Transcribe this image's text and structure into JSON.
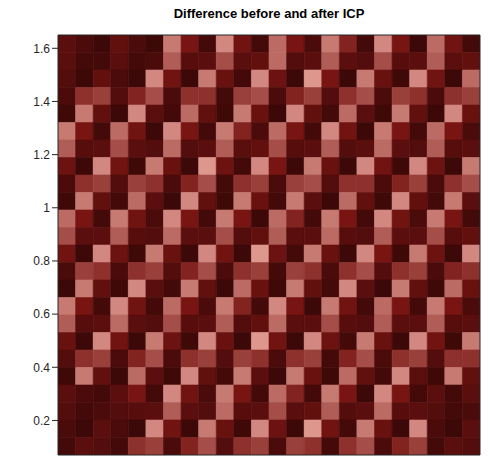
{
  "chart_data": {
    "type": "heatmap",
    "title": "Difference before and after ICP",
    "xlim": [
      0.05,
      1.57
    ],
    "ylim": [
      0.07,
      1.65
    ],
    "yticks": [
      0.2,
      0.4,
      0.6,
      0.8,
      1,
      1.2,
      1.4,
      1.6
    ],
    "tick_labels": "y",
    "value_range": [
      0,
      1
    ],
    "cells": [
      [
        0.3,
        0.2,
        0.1,
        0.35,
        0.2,
        0.1,
        0.85,
        0.5,
        0.15,
        0.9,
        0.45,
        0.15,
        0.8,
        0.5,
        0.2,
        0.85,
        0.55,
        0.15,
        0.9,
        0.5,
        0.1,
        0.8,
        0.45,
        0.15
      ],
      [
        0.3,
        0.15,
        0.15,
        0.3,
        0.15,
        0.2,
        0.75,
        0.28,
        0.3,
        0.7,
        0.3,
        0.35,
        0.8,
        0.25,
        0.3,
        0.75,
        0.3,
        0.25,
        0.7,
        0.28,
        0.3,
        0.75,
        0.3,
        0.35
      ],
      [
        0.25,
        0.1,
        0.35,
        0.2,
        0.1,
        0.9,
        0.45,
        0.1,
        0.85,
        0.4,
        0.15,
        0.9,
        0.42,
        0.1,
        0.95,
        0.5,
        0.1,
        0.85,
        0.4,
        0.12,
        0.9,
        0.45,
        0.1,
        0.8
      ],
      [
        0.2,
        0.6,
        0.65,
        0.25,
        0.55,
        0.7,
        0.2,
        0.6,
        0.6,
        0.15,
        0.65,
        0.7,
        0.2,
        0.55,
        0.65,
        0.25,
        0.6,
        0.7,
        0.2,
        0.65,
        0.6,
        0.2,
        0.6,
        0.65
      ],
      [
        0.12,
        0.85,
        0.35,
        0.1,
        0.9,
        0.3,
        0.15,
        0.8,
        0.35,
        0.12,
        0.85,
        0.4,
        0.1,
        0.9,
        0.35,
        0.15,
        0.8,
        0.3,
        0.12,
        0.85,
        0.35,
        0.1,
        0.9,
        0.4
      ],
      [
        0.85,
        0.5,
        0.15,
        0.8,
        0.45,
        0.1,
        0.9,
        0.5,
        0.15,
        0.85,
        0.55,
        0.2,
        0.8,
        0.5,
        0.15,
        0.9,
        0.45,
        0.1,
        0.85,
        0.5,
        0.15,
        0.8,
        0.5,
        0.2
      ],
      [
        0.75,
        0.28,
        0.3,
        0.7,
        0.3,
        0.25,
        0.8,
        0.25,
        0.3,
        0.75,
        0.3,
        0.35,
        0.7,
        0.28,
        0.3,
        0.75,
        0.25,
        0.3,
        0.8,
        0.3,
        0.25,
        0.75,
        0.28,
        0.3
      ],
      [
        0.42,
        0.1,
        0.9,
        0.45,
        0.12,
        0.85,
        0.4,
        0.1,
        0.95,
        0.42,
        0.15,
        0.9,
        0.5,
        0.1,
        0.85,
        0.4,
        0.1,
        0.9,
        0.45,
        0.12,
        0.9,
        0.42,
        0.1,
        0.85
      ],
      [
        0.2,
        0.6,
        0.65,
        0.25,
        0.65,
        0.6,
        0.2,
        0.55,
        0.7,
        0.15,
        0.6,
        0.65,
        0.2,
        0.65,
        0.7,
        0.25,
        0.6,
        0.6,
        0.2,
        0.55,
        0.65,
        0.2,
        0.6,
        0.7
      ],
      [
        0.12,
        0.85,
        0.35,
        0.15,
        0.8,
        0.3,
        0.1,
        0.9,
        0.35,
        0.12,
        0.85,
        0.4,
        0.15,
        0.85,
        0.3,
        0.1,
        0.8,
        0.35,
        0.12,
        0.9,
        0.35,
        0.15,
        0.85,
        0.3
      ],
      [
        0.8,
        0.5,
        0.15,
        0.85,
        0.45,
        0.2,
        0.9,
        0.5,
        0.15,
        0.85,
        0.5,
        0.1,
        0.8,
        0.55,
        0.15,
        0.85,
        0.5,
        0.15,
        0.9,
        0.45,
        0.2,
        0.85,
        0.5,
        0.15
      ],
      [
        0.7,
        0.3,
        0.3,
        0.75,
        0.28,
        0.25,
        0.8,
        0.3,
        0.3,
        0.7,
        0.25,
        0.35,
        0.75,
        0.3,
        0.3,
        0.8,
        0.28,
        0.25,
        0.75,
        0.3,
        0.3,
        0.7,
        0.28,
        0.35
      ],
      [
        0.45,
        0.1,
        0.9,
        0.42,
        0.12,
        0.85,
        0.4,
        0.1,
        0.9,
        0.45,
        0.1,
        0.95,
        0.42,
        0.15,
        0.85,
        0.4,
        0.1,
        0.9,
        0.5,
        0.12,
        0.85,
        0.42,
        0.1,
        0.9
      ],
      [
        0.2,
        0.65,
        0.6,
        0.2,
        0.6,
        0.65,
        0.25,
        0.55,
        0.7,
        0.2,
        0.6,
        0.65,
        0.15,
        0.65,
        0.6,
        0.2,
        0.6,
        0.7,
        0.25,
        0.6,
        0.65,
        0.2,
        0.55,
        0.6
      ],
      [
        0.1,
        0.85,
        0.35,
        0.12,
        0.9,
        0.3,
        0.15,
        0.85,
        0.35,
        0.1,
        0.8,
        0.4,
        0.12,
        0.85,
        0.35,
        0.15,
        0.9,
        0.3,
        0.1,
        0.85,
        0.35,
        0.12,
        0.8,
        0.4
      ],
      [
        0.85,
        0.5,
        0.15,
        0.9,
        0.45,
        0.15,
        0.8,
        0.5,
        0.2,
        0.85,
        0.55,
        0.15,
        0.9,
        0.5,
        0.1,
        0.85,
        0.45,
        0.15,
        0.8,
        0.5,
        0.15,
        0.85,
        0.5,
        0.2
      ],
      [
        0.75,
        0.28,
        0.3,
        0.8,
        0.3,
        0.25,
        0.7,
        0.28,
        0.3,
        0.75,
        0.25,
        0.35,
        0.8,
        0.3,
        0.3,
        0.7,
        0.28,
        0.25,
        0.75,
        0.3,
        0.3,
        0.75,
        0.28,
        0.3
      ],
      [
        0.4,
        0.1,
        0.9,
        0.45,
        0.1,
        0.85,
        0.42,
        0.12,
        0.9,
        0.4,
        0.1,
        0.95,
        0.45,
        0.1,
        0.9,
        0.42,
        0.15,
        0.85,
        0.4,
        0.1,
        0.9,
        0.45,
        0.12,
        0.85
      ],
      [
        0.25,
        0.6,
        0.65,
        0.2,
        0.55,
        0.7,
        0.2,
        0.6,
        0.65,
        0.25,
        0.65,
        0.6,
        0.2,
        0.6,
        0.65,
        0.15,
        0.55,
        0.7,
        0.2,
        0.6,
        0.65,
        0.25,
        0.6,
        0.6
      ],
      [
        0.12,
        0.85,
        0.35,
        0.1,
        0.8,
        0.3,
        0.12,
        0.9,
        0.35,
        0.15,
        0.85,
        0.3,
        0.1,
        0.85,
        0.4,
        0.12,
        0.8,
        0.35,
        0.15,
        0.9,
        0.3,
        0.12,
        0.85,
        0.35
      ],
      [
        0.3,
        0.2,
        0.15,
        0.3,
        0.5,
        0.15,
        0.9,
        0.45,
        0.2,
        0.85,
        0.5,
        0.15,
        0.8,
        0.55,
        0.15,
        0.85,
        0.5,
        0.1,
        0.9,
        0.5,
        0.15,
        0.3,
        0.15,
        0.3
      ],
      [
        0.25,
        0.15,
        0.2,
        0.25,
        0.28,
        0.3,
        0.75,
        0.3,
        0.25,
        0.8,
        0.28,
        0.3,
        0.7,
        0.3,
        0.35,
        0.75,
        0.25,
        0.3,
        0.8,
        0.28,
        0.3,
        0.25,
        0.15,
        0.2
      ],
      [
        0.2,
        0.1,
        0.3,
        0.2,
        0.1,
        0.9,
        0.45,
        0.1,
        0.85,
        0.4,
        0.12,
        0.9,
        0.42,
        0.1,
        0.95,
        0.45,
        0.15,
        0.85,
        0.4,
        0.1,
        0.9,
        0.2,
        0.1,
        0.3
      ],
      [
        0.15,
        0.3,
        0.25,
        0.15,
        0.6,
        0.65,
        0.2,
        0.55,
        0.7,
        0.25,
        0.6,
        0.65,
        0.2,
        0.65,
        0.6,
        0.15,
        0.6,
        0.7,
        0.2,
        0.55,
        0.65,
        0.15,
        0.3,
        0.25
      ]
    ]
  }
}
